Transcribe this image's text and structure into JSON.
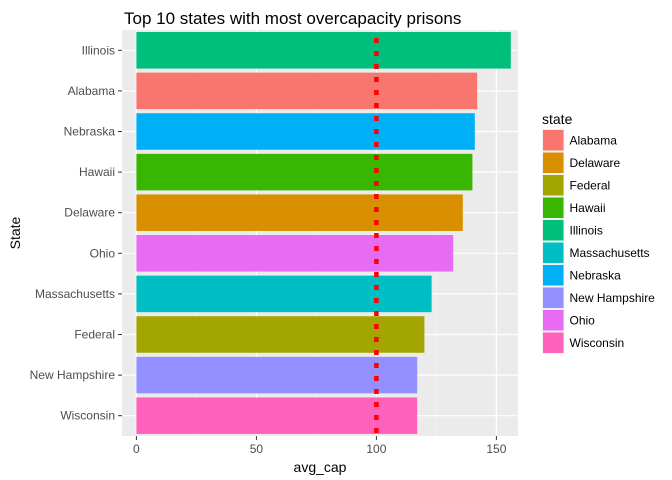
{
  "chart_data": {
    "type": "bar",
    "orientation": "horizontal",
    "title": "Top 10 states with most overcapacity prisons",
    "xlabel": "avg_cap",
    "ylabel": "State",
    "xlim": [
      -6,
      159
    ],
    "xticks": [
      0,
      50,
      100,
      150
    ],
    "grid": true,
    "reference_line": {
      "x": 100,
      "color": "#ff0000",
      "style": "dotted"
    },
    "categories": [
      "Illinois",
      "Alabama",
      "Nebraska",
      "Hawaii",
      "Delaware",
      "Ohio",
      "Massachusetts",
      "Federal",
      "New Hampshire",
      "Wisconsin"
    ],
    "values": [
      156,
      142,
      141,
      140,
      136,
      132,
      123,
      120,
      117,
      117
    ],
    "bar_colors": {
      "Alabama": "#F8766D",
      "Delaware": "#D89000",
      "Federal": "#A3A500",
      "Hawaii": "#39B600",
      "Illinois": "#00BF7D",
      "Massachusetts": "#00BFC4",
      "Nebraska": "#00B0F6",
      "New Hampshire": "#9590FF",
      "Ohio": "#E76BF3",
      "Wisconsin": "#FF62BC"
    },
    "legend": {
      "title": "state",
      "position": "right",
      "items": [
        "Alabama",
        "Delaware",
        "Federal",
        "Hawaii",
        "Illinois",
        "Massachusetts",
        "Nebraska",
        "New Hampshire",
        "Ohio",
        "Wisconsin"
      ]
    }
  }
}
